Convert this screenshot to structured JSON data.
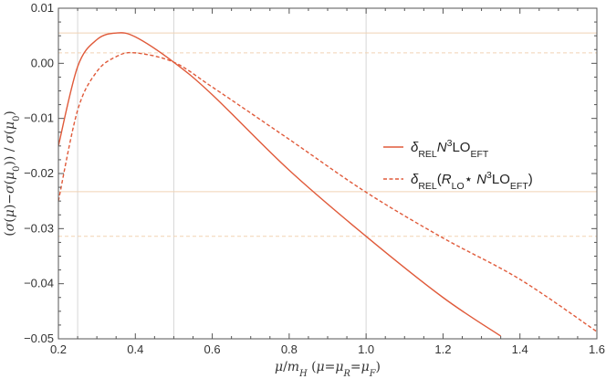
{
  "chart_data": {
    "type": "line",
    "title": "",
    "xlabel": "μ/m_H (μ=μ_R=μ_F)",
    "ylabel": "(σ(μ)−σ(μ₀)) / σ(μ₀)",
    "xlim": [
      0.2,
      1.6
    ],
    "ylim": [
      -0.05,
      0.01
    ],
    "xticks": [
      "0.2",
      "0.4",
      "0.6",
      "0.8",
      "1.0",
      "1.2",
      "1.4",
      "1.6"
    ],
    "yticks": [
      "0.01",
      "0.00",
      "-0.01",
      "-0.02",
      "-0.03",
      "-0.04",
      "-0.05"
    ],
    "grid": {
      "vertical": [
        0.25,
        0.5,
        1.0
      ],
      "horizontal": [
        0.0055,
        0.0019,
        -0.0233,
        -0.0314
      ]
    },
    "legend": "right",
    "series": [
      {
        "name": "δ_REL N³LO_EFT",
        "style": "solid",
        "color": "#E05A3A",
        "x": [
          0.2,
          0.25,
          0.3,
          0.35,
          0.4,
          0.5,
          0.6,
          0.8,
          1.0,
          1.2,
          1.35
        ],
        "y": [
          -0.015,
          -0.0006,
          0.0043,
          0.0055,
          0.0048,
          0.0002,
          -0.0057,
          -0.0194,
          -0.0314,
          -0.0425,
          -0.0495
        ]
      },
      {
        "name": "δ_REL (R_LO * N³LO_EFT)",
        "style": "dashed",
        "color": "#E05A3A",
        "x": [
          0.2,
          0.25,
          0.3,
          0.35,
          0.4,
          0.5,
          0.6,
          0.8,
          1.0,
          1.2,
          1.4,
          1.6
        ],
        "y": [
          -0.025,
          -0.0085,
          -0.0015,
          0.0012,
          0.0019,
          0.0002,
          -0.0043,
          -0.0138,
          -0.0234,
          -0.0317,
          -0.0392,
          -0.0487
        ]
      }
    ]
  }
}
